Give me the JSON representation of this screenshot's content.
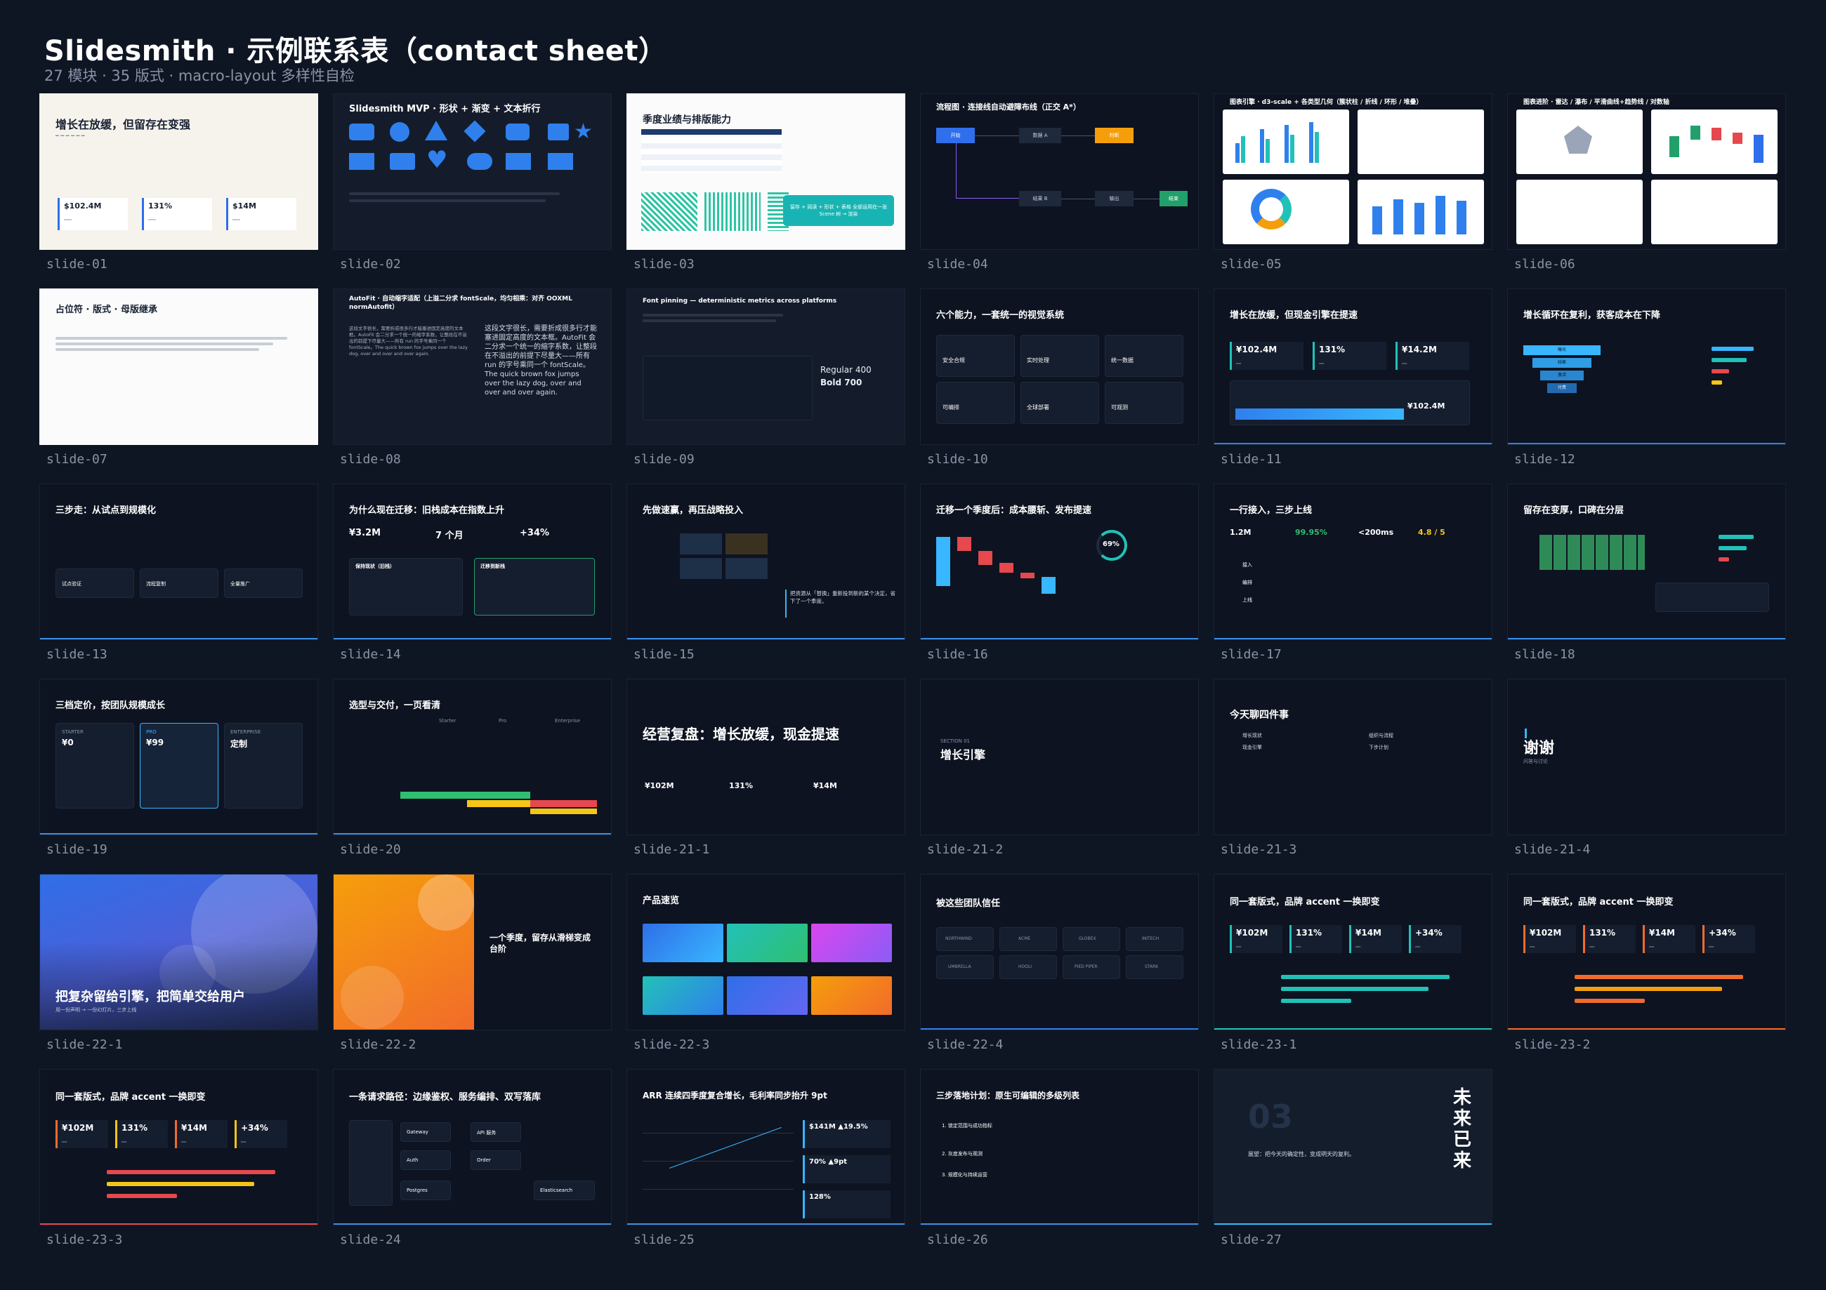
{
  "header": {
    "title": "Slidesmith · 示例联系表（contact sheet）",
    "subtitle": "27 模块 · 35 版式 · macro-layout 多样性自检"
  },
  "colors": {
    "background": "#0f1623",
    "caption": "#8a94a6",
    "accent_blue": "#2f80ed",
    "accent_teal": "#22c1b8",
    "accent_orange": "#f26b2a",
    "accent_green": "#2fbf71"
  },
  "slides": [
    {
      "caption": "slide-01",
      "title": "增长在放缓，但留存在变强",
      "kpis": [
        "$102.4M",
        "131%",
        "$14M"
      ]
    },
    {
      "caption": "slide-02",
      "title": "Slidesmith MVP · 形状 + 渐变 + 文本折行"
    },
    {
      "caption": "slide-03",
      "title": "季度业绩与排版能力",
      "callout": "留存 + 阅读 + 形状 + 表格 全部运用在一张 Scene 树 → 渲染"
    },
    {
      "caption": "slide-04",
      "title": "流程图 · 连接线自动避障布线（正交 A*）",
      "nodes": [
        "开始",
        "数据 A",
        "判断",
        "结果 B",
        "输出",
        "结束"
      ]
    },
    {
      "caption": "slide-05",
      "title": "图表引擎 · d3-scale + 各类型几何（簇状柱 / 折线 / 环形 / 堆叠）"
    },
    {
      "caption": "slide-06",
      "title": "图表进阶 · 雷达 / 瀑布 / 平滑曲线+趋势线 / 对数轴"
    },
    {
      "caption": "slide-07",
      "title": "占位符 · 版式 · 母版继承"
    },
    {
      "caption": "slide-08",
      "title": "AutoFit · 自动缩字适配（上溢二分求 fontScale，均匀相乘：对齐 OOXML normAutofit）",
      "body": "这段文字很长，需要折成很多行才能塞进固定高度的文本框。AutoFit 会二分求一个统一的缩字系数，让整段在不溢出的前提下尽量大——所有 run 的字号乘同一个 fontScale。The quick brown fox jumps over the lazy dog, over and over and over again."
    },
    {
      "caption": "slide-09",
      "title": "Font pinning — deterministic metrics across platforms",
      "regular": "Regular 400",
      "bold": "Bold 700"
    },
    {
      "caption": "slide-10",
      "title": "六个能力，一套统一的视觉系统",
      "items": [
        "安全合规",
        "实时处理",
        "统一数据",
        "可编排",
        "全球部署",
        "可观测"
      ]
    },
    {
      "caption": "slide-11",
      "title": "增长在放缓，但现金引擎在提速",
      "kpis": [
        "¥102.4M",
        "131%",
        "¥14.2M"
      ],
      "total": "¥102.4M"
    },
    {
      "caption": "slide-12",
      "title": "增长循环在复利，获客成本在下降",
      "funnel": [
        "曝光",
        "线索",
        "激活",
        "付费"
      ]
    },
    {
      "caption": "slide-13",
      "title": "三步走：从试点到规模化",
      "steps": [
        "试点验证",
        "流程复制",
        "全量推广"
      ]
    },
    {
      "caption": "slide-14",
      "title": "为什么现在迁移：旧栈成本在指数上升",
      "kpis": [
        "¥3.2M",
        "7 个月",
        "+34%"
      ],
      "panels": [
        "保持现状（旧栈）",
        "迁移到新栈"
      ]
    },
    {
      "caption": "slide-15",
      "title": "先做速赢，再压战略投入",
      "quote": "把资源从「替换」重新投到新的某个决定，省下了一个季度。"
    },
    {
      "caption": "slide-16",
      "title": "迁移一个季度后：成本腰斩、发布提速",
      "percent": "69%"
    },
    {
      "caption": "slide-17",
      "title": "一行接入，三步上线",
      "kpis": [
        "1.2M",
        "99.95%",
        "<200ms",
        "4.8 / 5"
      ],
      "labels": [
        "接入",
        "编排",
        "上线"
      ]
    },
    {
      "caption": "slide-18",
      "title": "留存在变厚，口碑在分层"
    },
    {
      "caption": "slide-19",
      "title": "三档定价，按团队规模成长",
      "tiers": [
        {
          "name": "STARTER",
          "price": "¥0"
        },
        {
          "name": "PRO",
          "price": "¥99"
        },
        {
          "name": "ENTERPRISE",
          "price": "定制"
        }
      ]
    },
    {
      "caption": "slide-20",
      "title": "选型与交付，一页看清",
      "cols": [
        "Starter",
        "Pro",
        "Enterprise"
      ]
    },
    {
      "caption": "slide-21-1",
      "title": "经营复盘：增长放缓，现金提速",
      "kpis": [
        "¥102M",
        "131%",
        "¥14M"
      ]
    },
    {
      "caption": "slide-21-2",
      "title": "增长引擎",
      "kicker": "SECTION 01"
    },
    {
      "caption": "slide-21-3",
      "title": "今天聊四件事",
      "agenda": [
        "增长现状",
        "现金引擎",
        "组织与流程",
        "下步计划"
      ]
    },
    {
      "caption": "slide-21-4",
      "title": "谢谢",
      "sub": "问答与讨论"
    },
    {
      "caption": "slide-22-1",
      "title": "把复杂留给引擎，把简单交给用户",
      "sub": "用一份声明 → 一份幻灯片，三步上线"
    },
    {
      "caption": "slide-22-2",
      "title": "一个季度，留存从滑梯变成台阶"
    },
    {
      "caption": "slide-22-3",
      "title": "产品速览"
    },
    {
      "caption": "slide-22-4",
      "title": "被这些团队信任",
      "logos": [
        "NORTHWIND",
        "ACME",
        "GLOBEX",
        "INITECH",
        "UMBRELLA",
        "HOOLI",
        "PIED PIPER",
        "STARK"
      ]
    },
    {
      "caption": "slide-23-1",
      "title": "同一套版式，品牌 accent 一换即变",
      "kpis": [
        "¥102M",
        "131%",
        "¥14M",
        "+34%"
      ]
    },
    {
      "caption": "slide-23-2",
      "title": "同一套版式，品牌 accent 一换即变",
      "kpis": [
        "¥102M",
        "131%",
        "¥14M",
        "+34%"
      ]
    },
    {
      "caption": "slide-23-3",
      "title": "同一套版式，品牌 accent 一换即变",
      "kpis": [
        "¥102M",
        "131%",
        "¥14M",
        "+34%"
      ]
    },
    {
      "caption": "slide-24",
      "title": "一条请求路径：边缘鉴权、服务编排、双写落库",
      "nodes": [
        "Gateway",
        "API 服务",
        "Auth",
        "Order",
        "Postgres",
        "Elasticsearch"
      ]
    },
    {
      "caption": "slide-25",
      "title": "ARR 连续四季度复合增长，毛利率同步抬升 9pt",
      "kpis": [
        "$141M ▲19.5%",
        "70% ▲9pt",
        "128%"
      ]
    },
    {
      "caption": "slide-26",
      "title": "三步落地计划：原生可编辑的多级列表",
      "items": [
        "1. 锁定范围与成功指标",
        "2. 灰度发布与观测",
        "3. 规模化与持续运营"
      ]
    },
    {
      "caption": "slide-27",
      "title": "未来已来",
      "number": "03",
      "sub": "展望：把今天的确定性，变成明天的复利。"
    }
  ]
}
